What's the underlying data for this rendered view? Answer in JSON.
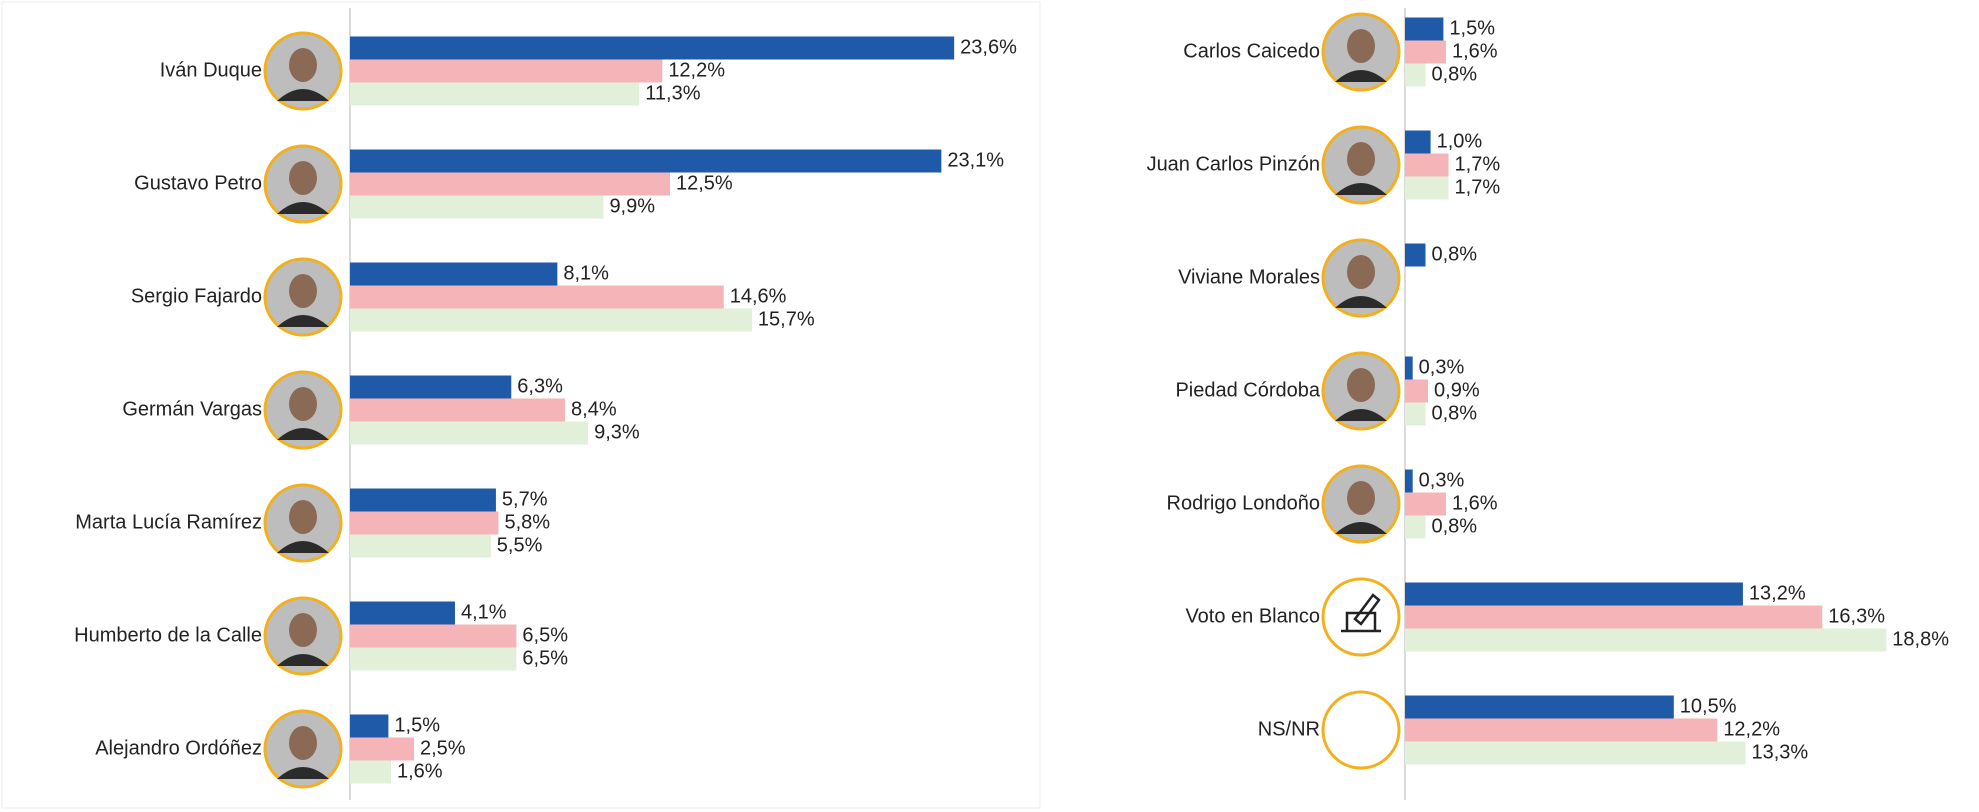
{
  "chart_data": [
    {
      "type": "bar",
      "orientation": "horizontal",
      "categories": [
        "Iván Duque",
        "Gustavo Petro",
        "Sergio Fajardo",
        "Germán Vargas",
        "Marta Lucía Ramírez",
        "Humberto de la Calle",
        "Alejandro Ordóñez"
      ],
      "xlim": [
        0,
        27
      ],
      "series": [
        {
          "color": "#1f5aa8",
          "values": [
            23.6,
            23.1,
            8.1,
            6.3,
            5.7,
            4.1,
            1.5
          ],
          "value_labels": [
            "23,6%",
            "23,1%",
            "8,1%",
            "6,3%",
            "5,7%",
            "4,1%",
            "1,5%"
          ]
        },
        {
          "color": "#f5b5b8",
          "values": [
            12.2,
            12.5,
            14.6,
            8.4,
            5.8,
            6.5,
            2.5
          ],
          "value_labels": [
            "12,2%",
            "12,5%",
            "14,6%",
            "8,4%",
            "5,8%",
            "6,5%",
            "2,5%"
          ]
        },
        {
          "color": "#e2efd9",
          "values": [
            11.3,
            9.9,
            15.7,
            9.3,
            5.5,
            6.5,
            1.6
          ],
          "value_labels": [
            "11,3%",
            "9,9%",
            "15,7%",
            "9,3%",
            "5,5%",
            "6,5%",
            "1,6%"
          ]
        }
      ]
    },
    {
      "type": "bar",
      "orientation": "horizontal",
      "categories": [
        "Carlos Caicedo",
        "Juan Carlos Pinzón",
        "Viviane Morales",
        "Piedad Córdoba",
        "Rodrigo Londoño",
        "Voto en Blanco",
        "NS/NR"
      ],
      "xlim": [
        0,
        22
      ],
      "series": [
        {
          "color": "#1f5aa8",
          "values": [
            1.5,
            1.0,
            0.8,
            0.3,
            0.3,
            13.2,
            10.5
          ],
          "value_labels": [
            "1,5%",
            "1,0%",
            "0,8%",
            "0,3%",
            "0,3%",
            "13,2%",
            "10,5%"
          ]
        },
        {
          "color": "#f5b5b8",
          "values": [
            1.6,
            1.7,
            null,
            0.9,
            1.6,
            16.3,
            12.2
          ],
          "value_labels": [
            "1,6%",
            "1,7%",
            null,
            "0,9%",
            "1,6%",
            "16,3%",
            "12,2%"
          ]
        },
        {
          "color": "#e2efd9",
          "values": [
            0.8,
            1.7,
            null,
            0.8,
            0.8,
            18.8,
            13.3
          ],
          "value_labels": [
            "0,8%",
            "1,7%",
            null,
            "0,8%",
            "0,8%",
            "18,8%",
            "13,3%"
          ]
        }
      ]
    }
  ]
}
